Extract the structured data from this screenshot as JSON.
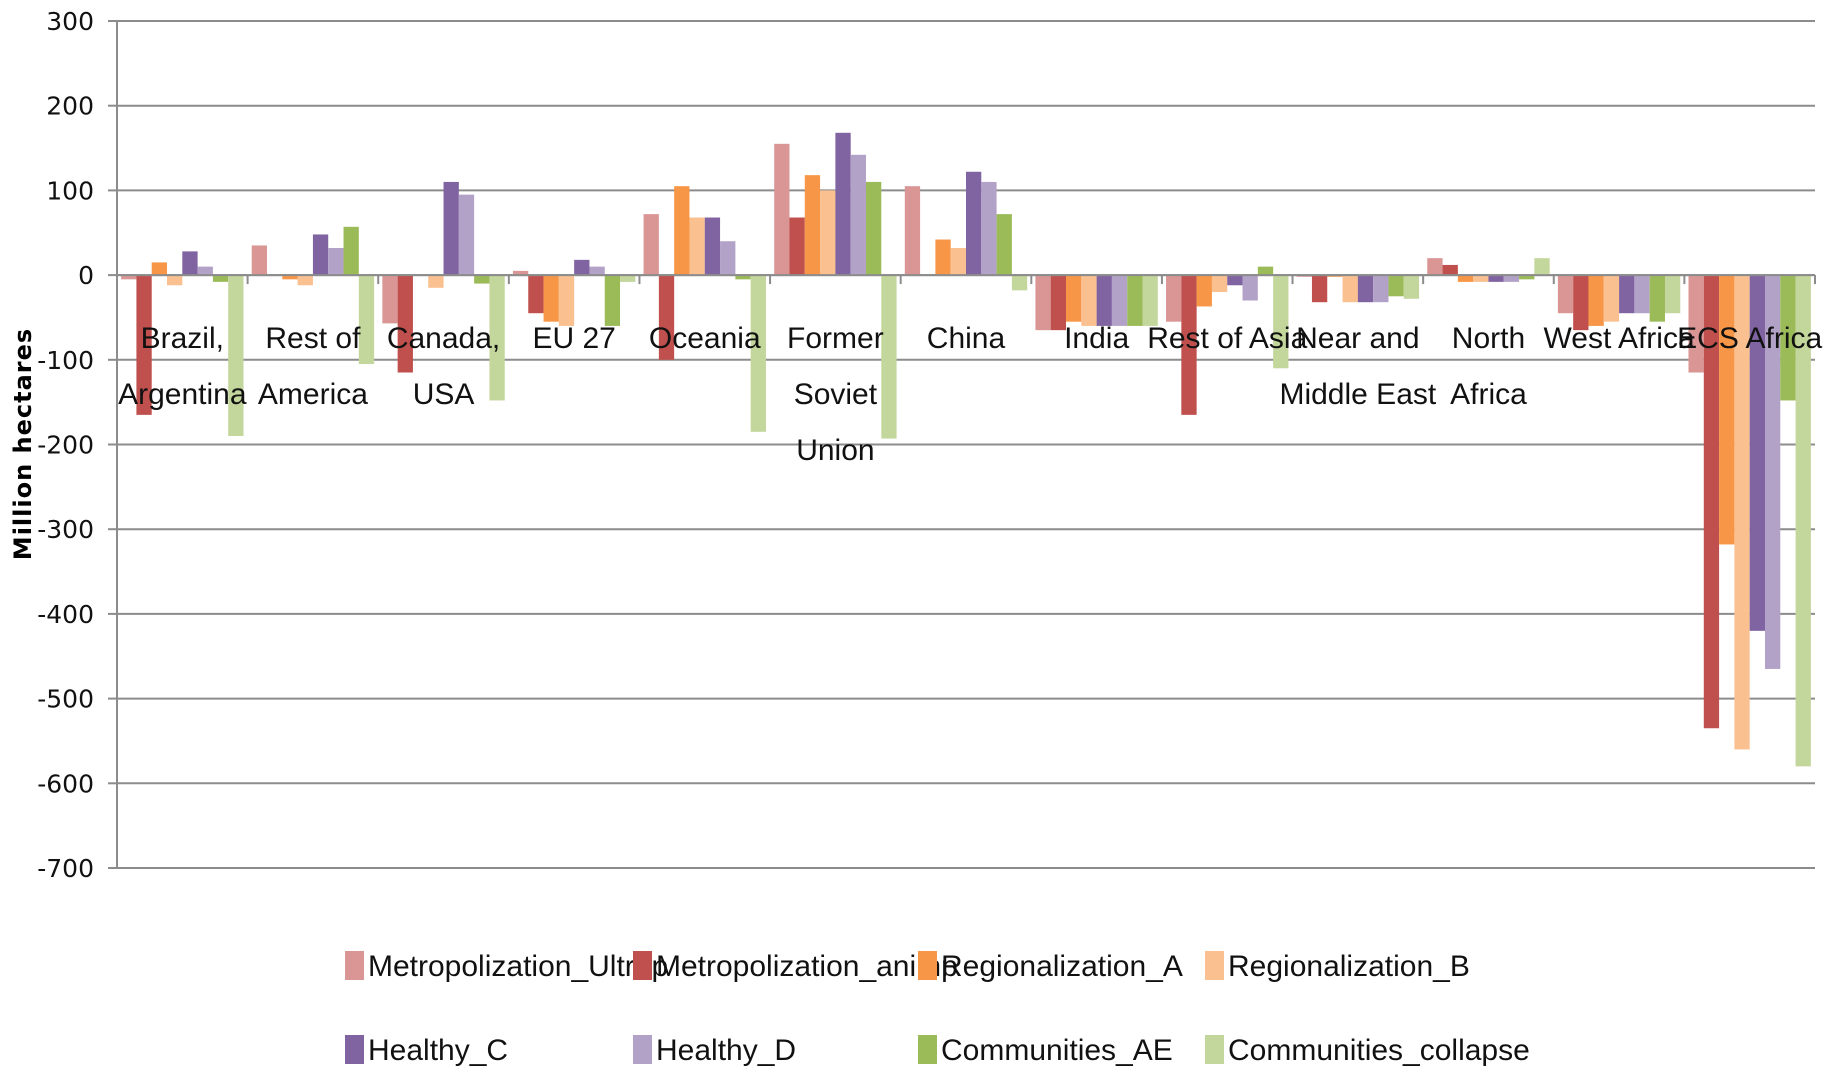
{
  "chart_data": {
    "type": "bar",
    "title": "",
    "xlabel": "",
    "ylabel": "Million hectares",
    "ylim": [
      -700,
      300
    ],
    "yticks": [
      300,
      200,
      100,
      0,
      -100,
      -200,
      -300,
      -400,
      -500,
      -600,
      -700
    ],
    "grid": true,
    "legend_position": "bottom",
    "categories": [
      [
        "Brazil,",
        "Argentina"
      ],
      [
        "Rest of",
        "America"
      ],
      [
        "Canada,",
        "USA"
      ],
      [
        "EU 27"
      ],
      [
        "Oceania"
      ],
      [
        "Former",
        "Soviet",
        "Union"
      ],
      [
        "China"
      ],
      [
        "India"
      ],
      [
        "Rest of Asia"
      ],
      [
        "Near and",
        "Middle East"
      ],
      [
        "North",
        "Africa"
      ],
      [
        "West Africa"
      ],
      [
        "ECS Africa"
      ]
    ],
    "series": [
      {
        "name": "Metropolization_Ultrap",
        "color": "#d99694",
        "values": [
          -5,
          35,
          -57,
          5,
          72,
          155,
          105,
          -65,
          -55,
          -2,
          20,
          -45,
          -115
        ]
      },
      {
        "name": "Metropolization_animp",
        "color": "#c0504d",
        "values": [
          -165,
          0,
          -115,
          -45,
          -100,
          68,
          0,
          -65,
          -165,
          -32,
          12,
          -65,
          -535
        ]
      },
      {
        "name": "Regionalization_A",
        "color": "#f79646",
        "values": [
          15,
          -5,
          0,
          -55,
          105,
          118,
          42,
          -55,
          -37,
          -2,
          -8,
          -60,
          -318
        ]
      },
      {
        "name": "Regionalization_B",
        "color": "#fac090",
        "values": [
          -12,
          -12,
          -15,
          -60,
          68,
          100,
          32,
          -60,
          -20,
          -32,
          -8,
          -55,
          -560
        ]
      },
      {
        "name": "Healthy_C",
        "color": "#8064a2",
        "values": [
          28,
          48,
          110,
          18,
          68,
          168,
          122,
          -60,
          -12,
          -32,
          -8,
          -45,
          -420
        ]
      },
      {
        "name": "Healthy_D",
        "color": "#b3a2c7",
        "values": [
          10,
          32,
          95,
          10,
          40,
          142,
          110,
          -60,
          -30,
          -32,
          -8,
          -45,
          -465
        ]
      },
      {
        "name": "Communities_AE",
        "color": "#9bbb59",
        "values": [
          -8,
          57,
          -10,
          -60,
          -5,
          110,
          72,
          -60,
          10,
          -25,
          -5,
          -55,
          -148
        ]
      },
      {
        "name": "Communities_collapse",
        "color": "#c3d69b",
        "values": [
          -190,
          -105,
          -148,
          -8,
          -185,
          -193,
          -18,
          -60,
          -110,
          -28,
          20,
          -45,
          -580
        ]
      }
    ]
  }
}
